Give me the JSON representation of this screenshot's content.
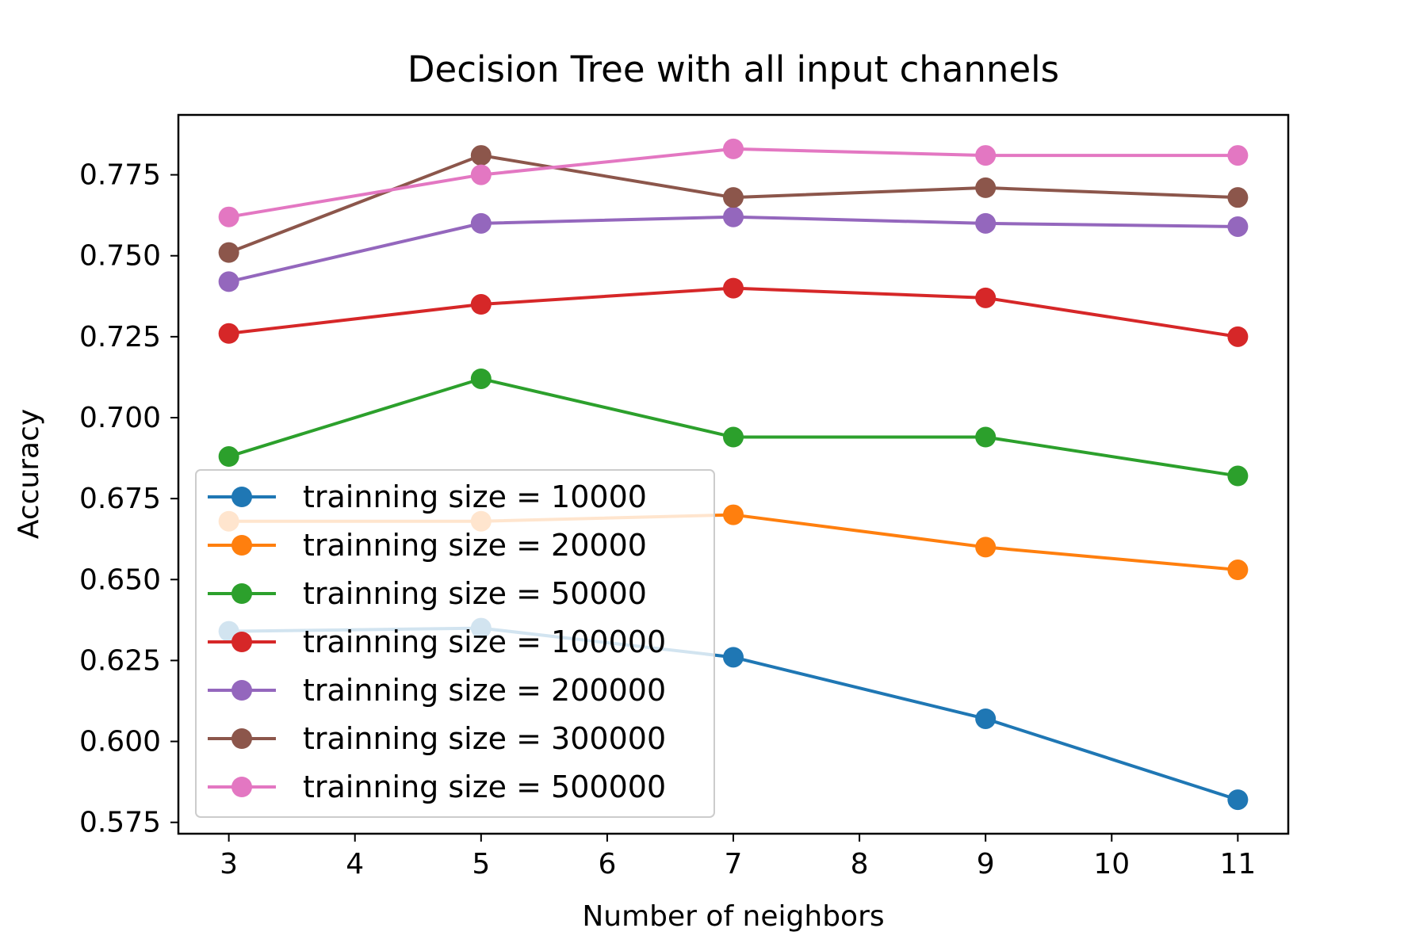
{
  "chart_data": {
    "type": "line",
    "title": "Decision Tree with all input channels",
    "xlabel": "Number of neighbors",
    "ylabel": "Accuracy",
    "x": [
      3,
      5,
      7,
      9,
      11
    ],
    "xlim": [
      2.6,
      11.4
    ],
    "ylim": [
      0.5715,
      0.7935
    ],
    "xticks": [
      3,
      4,
      5,
      6,
      7,
      8,
      9,
      10,
      11
    ],
    "yticks": [
      0.575,
      0.6,
      0.625,
      0.65,
      0.675,
      0.7,
      0.725,
      0.75,
      0.775
    ],
    "ytick_labels": [
      "0.575",
      "0.600",
      "0.625",
      "0.650",
      "0.675",
      "0.700",
      "0.725",
      "0.750",
      "0.775"
    ],
    "grid": false,
    "legend_position": "lower-left",
    "series": [
      {
        "name": "trainning size = 10000",
        "color": "#1f77b4",
        "values": [
          0.634,
          0.635,
          0.626,
          0.607,
          0.582
        ]
      },
      {
        "name": "trainning size = 20000",
        "color": "#ff7f0e",
        "values": [
          0.668,
          0.668,
          0.67,
          0.66,
          0.653
        ]
      },
      {
        "name": "trainning size = 50000",
        "color": "#2ca02c",
        "values": [
          0.688,
          0.712,
          0.694,
          0.694,
          0.682
        ]
      },
      {
        "name": "trainning size = 100000",
        "color": "#d62728",
        "values": [
          0.726,
          0.735,
          0.74,
          0.737,
          0.725
        ]
      },
      {
        "name": "trainning size = 200000",
        "color": "#9467bd",
        "values": [
          0.742,
          0.76,
          0.762,
          0.76,
          0.759
        ]
      },
      {
        "name": "trainning size = 300000",
        "color": "#8c564b",
        "values": [
          0.751,
          0.781,
          0.768,
          0.771,
          0.768
        ]
      },
      {
        "name": "trainning size = 500000",
        "color": "#e377c2",
        "values": [
          0.762,
          0.775,
          0.783,
          0.781,
          0.781
        ]
      }
    ]
  }
}
